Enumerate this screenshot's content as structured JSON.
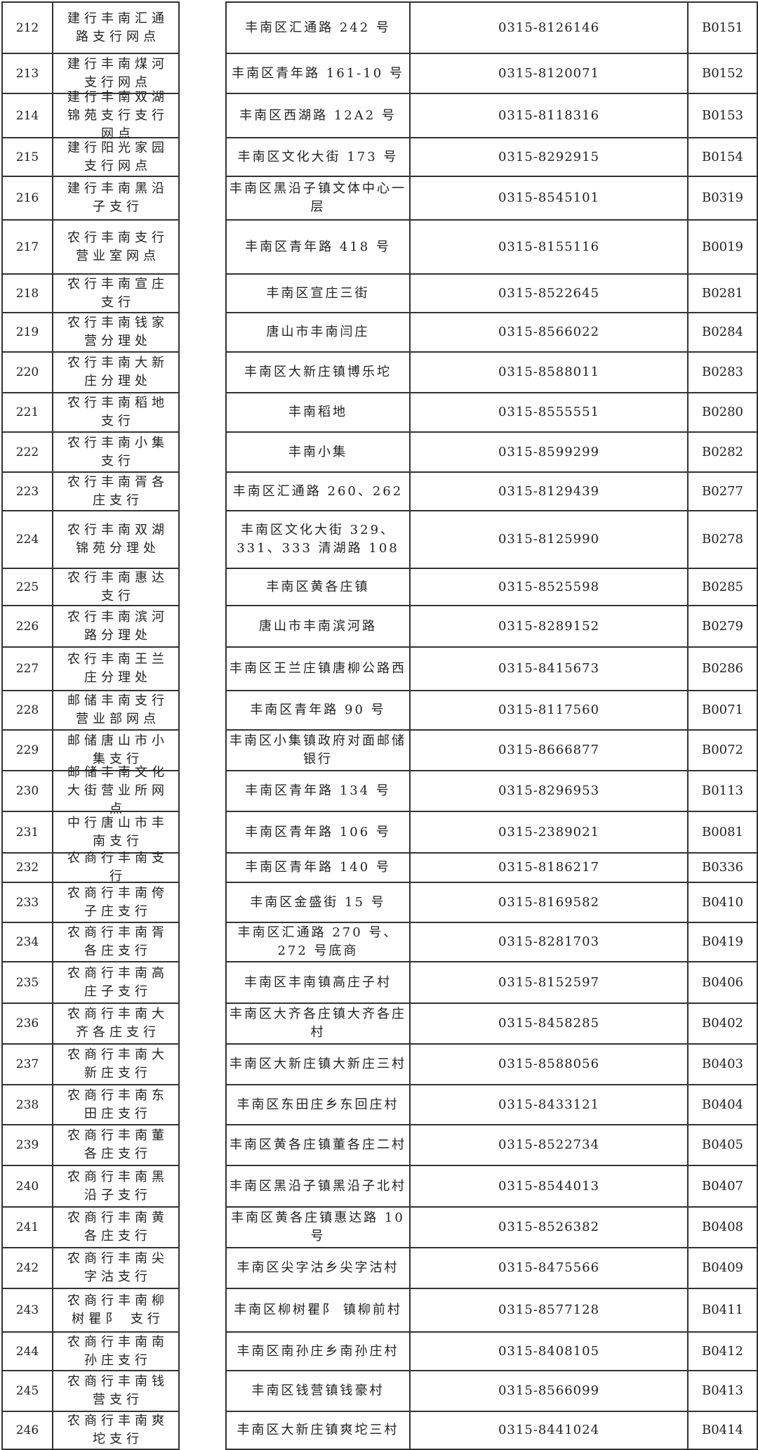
{
  "rows": [
    {
      "no": "212",
      "name": "建行丰南汇通路支行网点",
      "addr": "丰南区汇通路 242 号",
      "tel": "0315-8126146",
      "code": "B0151"
    },
    {
      "no": "213",
      "name": "建行丰南煤河支行网点",
      "addr": "丰南区青年路 161-10 号",
      "tel": "0315-8120071",
      "code": "B0152"
    },
    {
      "no": "214",
      "name": "建行丰南双湖锦苑支行支行网点",
      "addr": "丰南区西湖路 12A2 号",
      "tel": "0315-8118316",
      "code": "B0153"
    },
    {
      "no": "215",
      "name": "建行阳光家园支行网点",
      "addr": "丰南区文化大街 173 号",
      "tel": "0315-8292915",
      "code": "B0154"
    },
    {
      "no": "216",
      "name": "建行丰南黑沿子支行",
      "addr": "丰南区黑沿子镇文体中心一层",
      "tel": "0315-8545101",
      "code": "B0319"
    },
    {
      "no": "217",
      "name": "农行丰南支行营业室网点",
      "addr": "丰南区青年路 418 号",
      "tel": "0315-8155116",
      "code": "B0019"
    },
    {
      "no": "218",
      "name": "农行丰南宣庄支行",
      "addr": "丰南区宣庄三街",
      "tel": "0315-8522645",
      "code": "B0281"
    },
    {
      "no": "219",
      "name": "农行丰南钱家营分理处",
      "addr": "唐山市丰南闫庄",
      "tel": "0315-8566022",
      "code": "B0284"
    },
    {
      "no": "220",
      "name": "农行丰南大新庄分理处",
      "addr": "丰南区大新庄镇博乐坨",
      "tel": "0315-8588011",
      "code": "B0283"
    },
    {
      "no": "221",
      "name": "农行丰南稻地支行",
      "addr": "丰南稻地",
      "tel": "0315-8555551",
      "code": "B0280"
    },
    {
      "no": "222",
      "name": "农行丰南小集支行",
      "addr": "丰南小集",
      "tel": "0315-8599299",
      "code": "B0282"
    },
    {
      "no": "223",
      "name": "农行丰南胥各庄支行",
      "addr": "丰南区汇通路 260、262",
      "tel": "0315-8129439",
      "code": "B0277"
    },
    {
      "no": "224",
      "name": "农行丰南双湖锦苑分理处",
      "addr": "丰南区文化大街 329、331、333 清湖路 108",
      "tel": "0315-8125990",
      "code": "B0278"
    },
    {
      "no": "225",
      "name": "农行丰南惠达支行",
      "addr": "丰南区黄各庄镇",
      "tel": "0315-8525598",
      "code": "B0285"
    },
    {
      "no": "226",
      "name": "农行丰南滨河路分理处",
      "addr": "唐山市丰南滨河路",
      "tel": "0315-8289152",
      "code": "B0279"
    },
    {
      "no": "227",
      "name": "农行丰南王兰庄分理处",
      "addr": "丰南区王兰庄镇唐柳公路西",
      "tel": "0315-8415673",
      "code": "B0286"
    },
    {
      "no": "228",
      "name": "邮储丰南支行营业部网点",
      "addr": "丰南区青年路 90 号",
      "tel": "0315-8117560",
      "code": "B0071"
    },
    {
      "no": "229",
      "name": "邮储唐山市小集支行",
      "addr": "丰南区小集镇政府对面邮储银行",
      "tel": "0315-8666877",
      "code": "B0072"
    },
    {
      "no": "230",
      "name": "邮储丰南文化大街营业所网点",
      "addr": "丰南区青年路 134 号",
      "tel": "0315-8296953",
      "code": "B0113"
    },
    {
      "no": "231",
      "name": "中行唐山市丰南支行",
      "addr": "丰南区青年路 106 号",
      "tel": "0315-2389021",
      "code": "B0081"
    },
    {
      "no": "232",
      "name": "农商行丰南支行",
      "addr": "丰南区青年路 140 号",
      "tel": "0315-8186217",
      "code": "B0336"
    },
    {
      "no": "233",
      "name": "农商行丰南侉子庄支行",
      "addr": "丰南区金盛街 15 号",
      "tel": "0315-8169582",
      "code": "B0410"
    },
    {
      "no": "234",
      "name": "农商行丰南胥各庄支行",
      "addr": "丰南区汇通路 270 号、272 号底商",
      "tel": "0315-8281703",
      "code": "B0419"
    },
    {
      "no": "235",
      "name": "农商行丰南高庄子支行",
      "addr": "丰南区丰南镇高庄子村",
      "tel": "0315-8152597",
      "code": "B0406"
    },
    {
      "no": "236",
      "name": "农商行丰南大齐各庄支行",
      "addr": "丰南区大齐各庄镇大齐各庄村",
      "tel": "0315-8458285",
      "code": "B0402"
    },
    {
      "no": "237",
      "name": "农商行丰南大新庄支行",
      "addr": "丰南区大新庄镇大新庄三村",
      "tel": "0315-8588056",
      "code": "B0403"
    },
    {
      "no": "238",
      "name": "农商行丰南东田庄支行",
      "addr": "丰南区东田庄乡东回庄村",
      "tel": "0315-8433121",
      "code": "B0404"
    },
    {
      "no": "239",
      "name": "农商行丰南董各庄支行",
      "addr": "丰南区黄各庄镇董各庄二村",
      "tel": "0315-8522734",
      "code": "B0405"
    },
    {
      "no": "240",
      "name": "农商行丰南黑沿子支行",
      "addr": "丰南区黑沿子镇黑沿子北村",
      "tel": "0315-8544013",
      "code": "B0407"
    },
    {
      "no": "241",
      "name": "农商行丰南黄各庄支行",
      "addr": "丰南区黄各庄镇惠达路 10 号",
      "tel": "0315-8526382",
      "code": "B0408"
    },
    {
      "no": "242",
      "name": "农商行丰南尖字沽支行",
      "addr": "丰南区尖字沽乡尖字沽村",
      "tel": "0315-8475566",
      "code": "B0409"
    },
    {
      "no": "243",
      "name": "农商行丰南柳树瞿阝 支行",
      "addr": "丰南区柳树瞿阝 镇柳前村",
      "tel": "0315-8577128",
      "code": "B0411"
    },
    {
      "no": "244",
      "name": "农商行丰南南孙庄支行",
      "addr": "丰南区南孙庄乡南孙庄村",
      "tel": "0315-8408105",
      "code": "B0412"
    },
    {
      "no": "245",
      "name": "农商行丰南钱营支行",
      "addr": "丰南区钱营镇钱豪村",
      "tel": "0315-8566099",
      "code": "B0413"
    },
    {
      "no": "246",
      "name": "农商行丰南爽坨支行",
      "addr": "丰南区大新庄镇爽坨三村",
      "tel": "0315-8441024",
      "code": "B0414"
    }
  ]
}
